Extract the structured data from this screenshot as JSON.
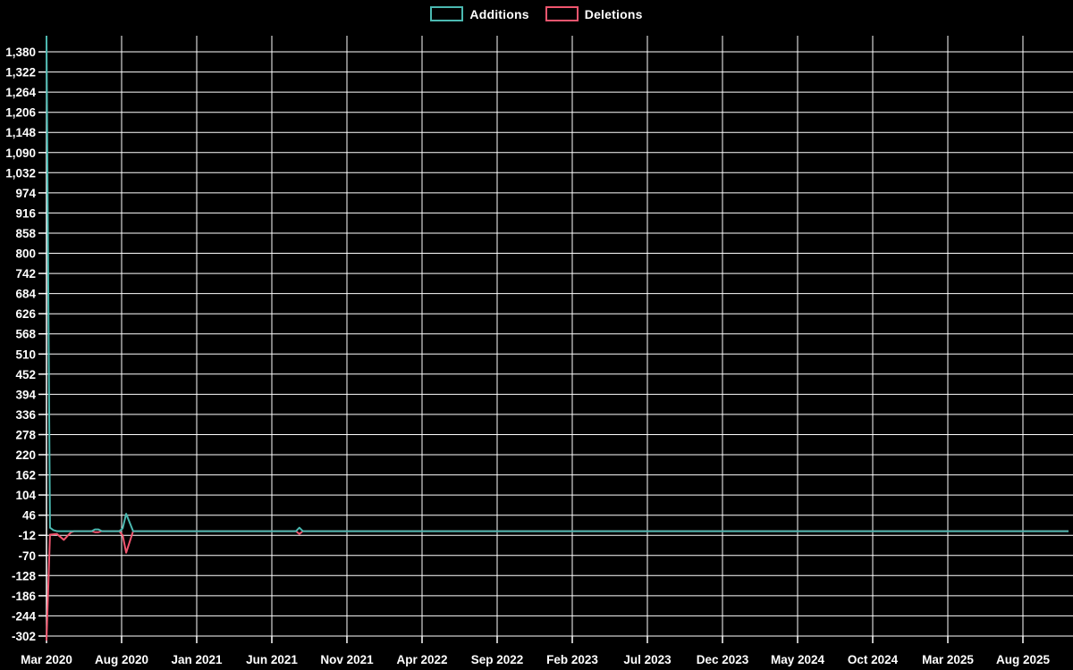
{
  "chart_data": {
    "type": "line",
    "title": "",
    "background_color": "#000000",
    "grid_color": "#ffffff",
    "text_color": "#ffffff",
    "legend_position": "top-center",
    "legend": [
      {
        "label": "Additions",
        "color": "#4BB9B1"
      },
      {
        "label": "Deletions",
        "color": "#F1566F"
      }
    ],
    "x_tick_labels": [
      "Mar 2020",
      "Aug 2020",
      "Jan 2021",
      "Jun 2021",
      "Nov 2021",
      "Apr 2022",
      "Sep 2022",
      "Feb 2023",
      "Jul 2023",
      "Dec 2023",
      "May 2024",
      "Oct 2024",
      "Mar 2025",
      "Aug 2025"
    ],
    "y_tick_labels": [
      "1,380",
      "1,322",
      "1,264",
      "1,206",
      "1,148",
      "1,090",
      "1,032",
      "974",
      "916",
      "858",
      "800",
      "742",
      "684",
      "626",
      "568",
      "510",
      "452",
      "394",
      "336",
      "278",
      "220",
      "162",
      "104",
      "46",
      "-12",
      "-70",
      "-128",
      "-186",
      "-244",
      "-302"
    ],
    "y_tick_values": [
      1380,
      1322,
      1264,
      1206,
      1148,
      1090,
      1032,
      974,
      916,
      858,
      800,
      742,
      684,
      626,
      568,
      510,
      452,
      394,
      336,
      278,
      220,
      162,
      104,
      46,
      -12,
      -70,
      -128,
      -186,
      -244,
      -302
    ],
    "ylim": [
      -315,
      1426
    ],
    "x_unit": "week",
    "weeks_total": 295,
    "grid": true,
    "series": [
      {
        "name": "Additions",
        "color": "#4BB9B1",
        "points": [
          [
            0,
            1426
          ],
          [
            1,
            10
          ],
          [
            2,
            3
          ],
          [
            3,
            0
          ],
          [
            13,
            0
          ],
          [
            14,
            5
          ],
          [
            15,
            5
          ],
          [
            16,
            0
          ],
          [
            21,
            0
          ],
          [
            22,
            8
          ],
          [
            23,
            50
          ],
          [
            25,
            0
          ],
          [
            72,
            0
          ],
          [
            73,
            10
          ],
          [
            74,
            0
          ],
          [
            295,
            0
          ]
        ]
      },
      {
        "name": "Deletions",
        "color": "#F1566F",
        "points": [
          [
            0,
            -315
          ],
          [
            1,
            -10
          ],
          [
            3,
            -8
          ],
          [
            5,
            -25
          ],
          [
            7,
            -4
          ],
          [
            8,
            0
          ],
          [
            13,
            0
          ],
          [
            14,
            -3
          ],
          [
            15,
            -3
          ],
          [
            16,
            0
          ],
          [
            21,
            0
          ],
          [
            22,
            -12
          ],
          [
            23,
            -62
          ],
          [
            25,
            0
          ],
          [
            72,
            0
          ],
          [
            73,
            -8
          ],
          [
            74,
            0
          ],
          [
            295,
            0
          ]
        ]
      }
    ]
  }
}
